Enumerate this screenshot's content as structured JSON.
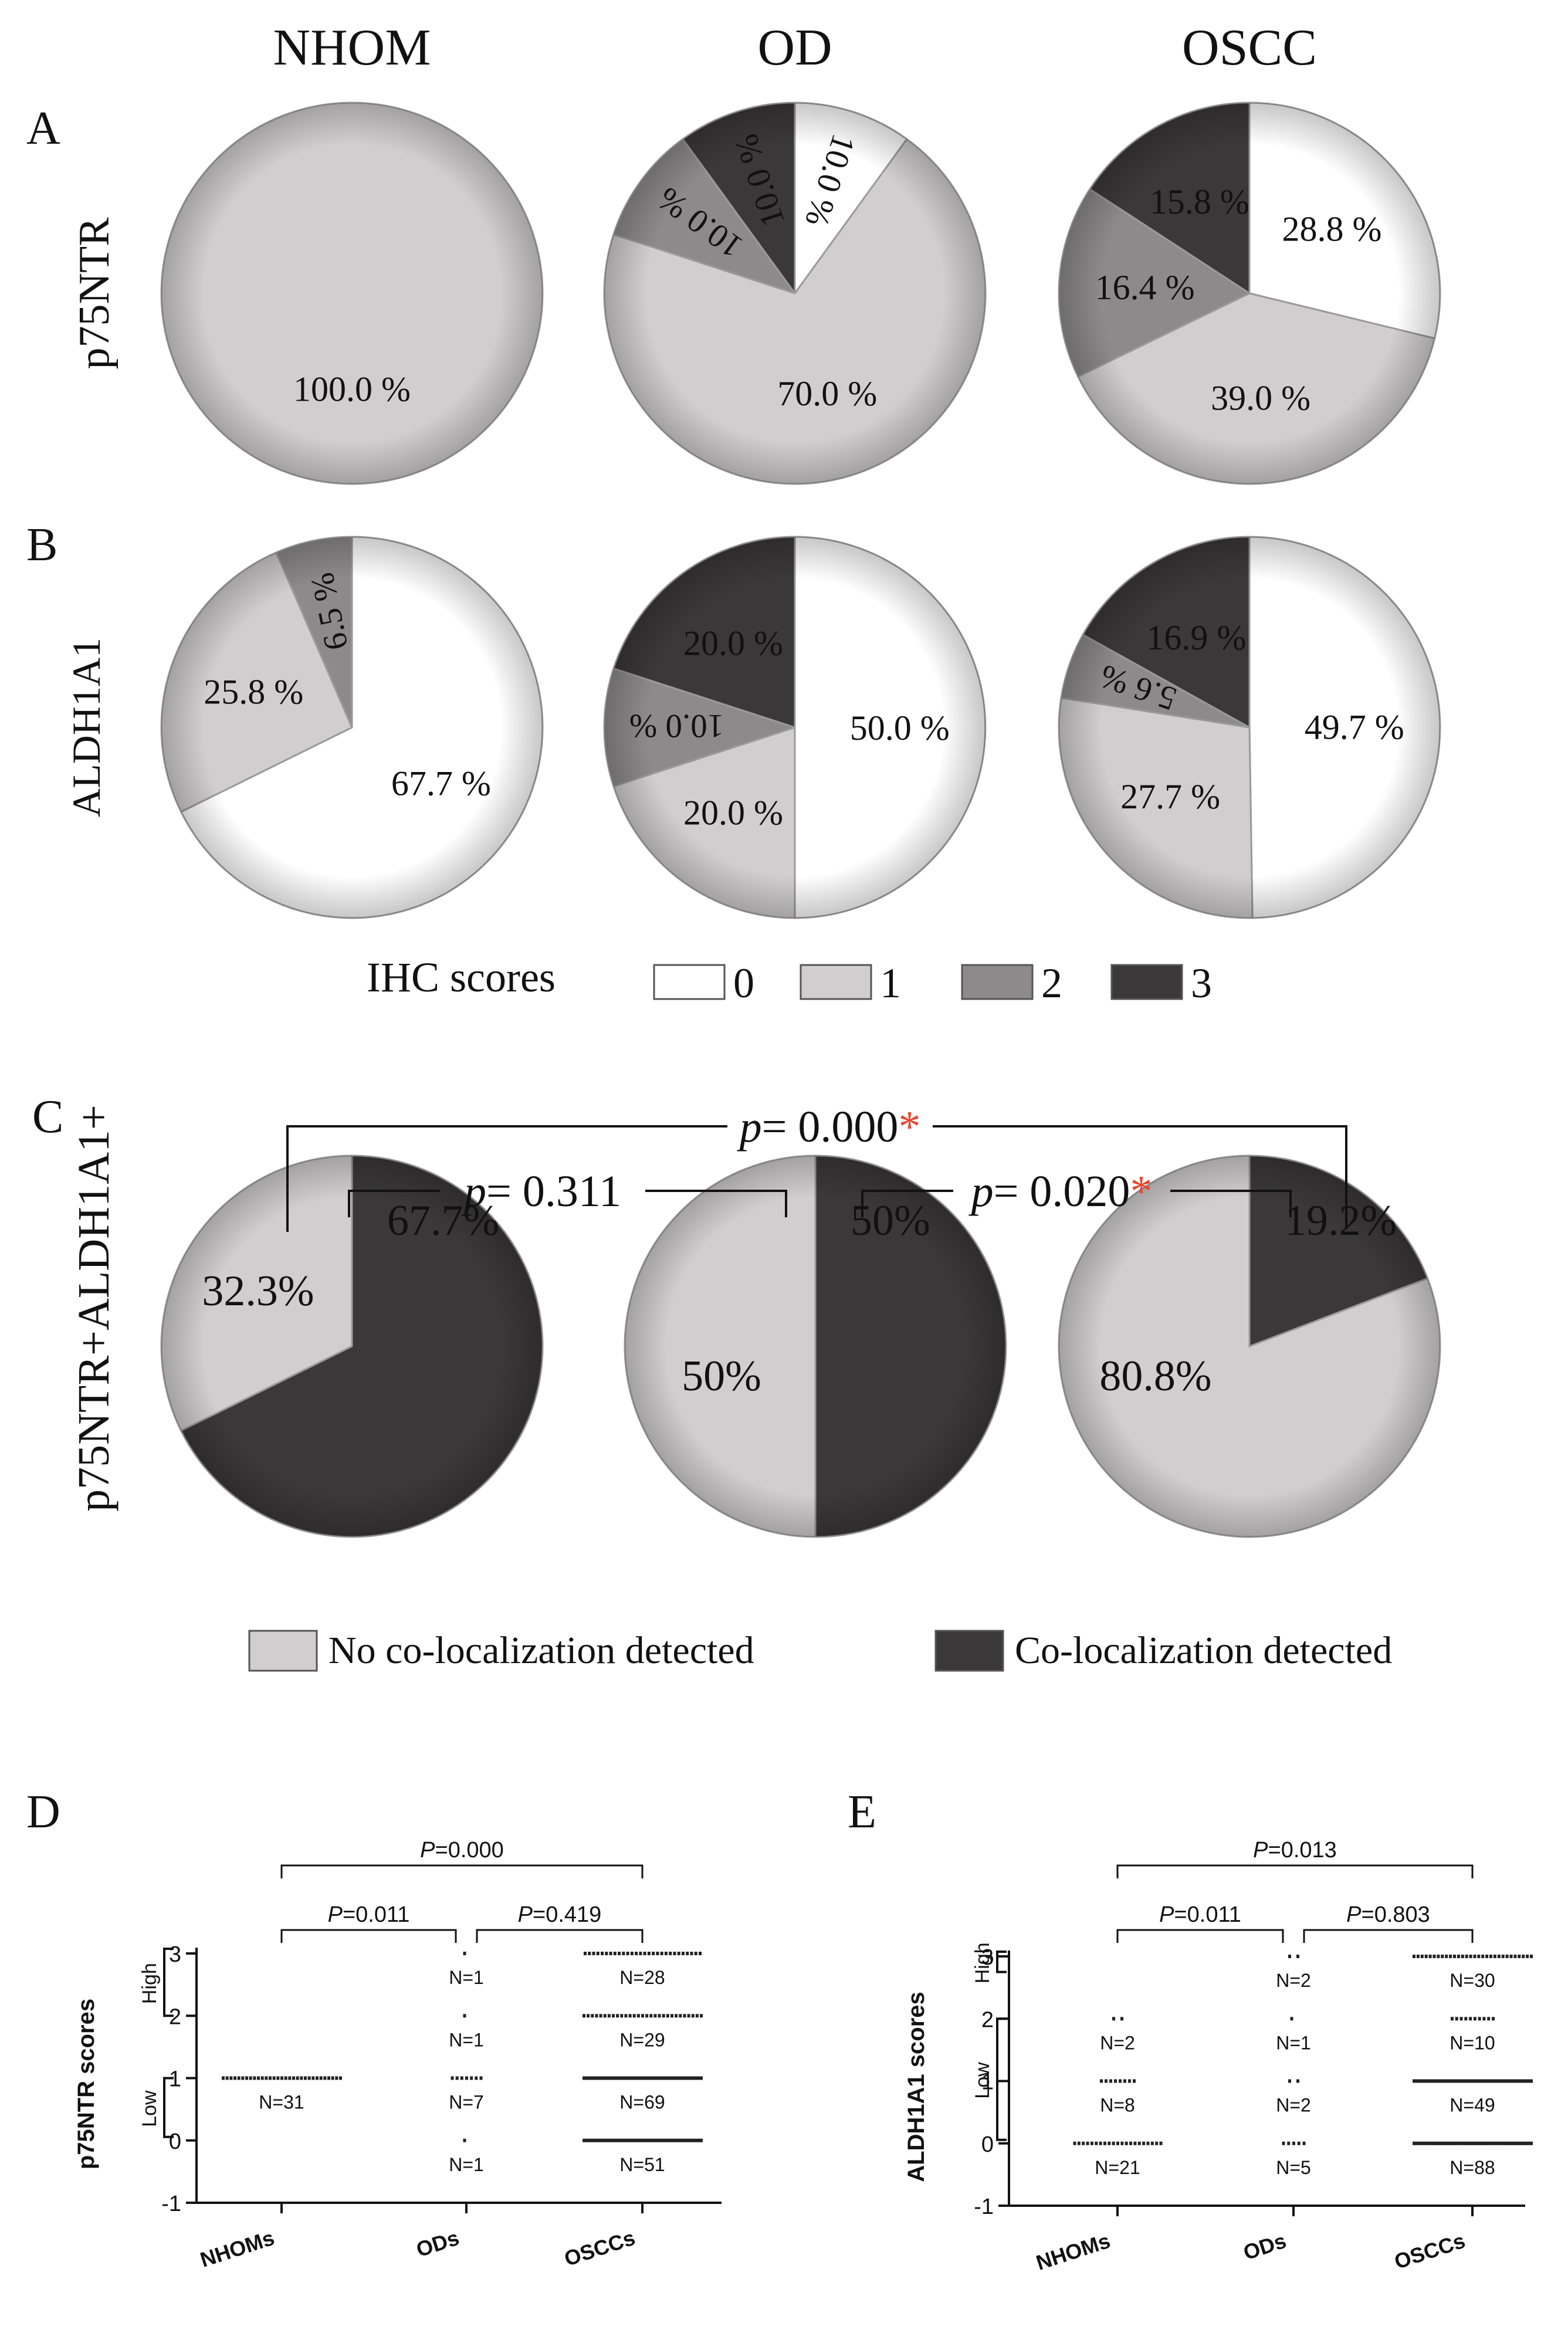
{
  "colors": {
    "score0": "#ffffff",
    "score1": "#d2ced0",
    "score2": "#8e8a8c",
    "score3": "#3a3839",
    "no_coloc": "#d2ced0",
    "coloc": "#3a3839",
    "outline": "#9a9a9a",
    "asterisk": "#e8472f",
    "ink": "#111111"
  },
  "panel_letters": [
    "A",
    "B",
    "C",
    "D",
    "E"
  ],
  "chart_data": [
    {
      "type": "pie",
      "panel": "A",
      "row_label": "p75NTR",
      "columns": [
        "NHOM",
        "OD",
        "OSCC"
      ],
      "legend_title": "IHC scores",
      "categories": [
        "0",
        "1",
        "2",
        "3"
      ],
      "pies": [
        {
          "group": "NHOM",
          "values": [
            0,
            100.0,
            0,
            0
          ],
          "labels": [
            "",
            "100.0 %",
            "",
            ""
          ]
        },
        {
          "group": "OD",
          "values": [
            10.0,
            70.0,
            10.0,
            10.0
          ],
          "labels": [
            "10.0 %",
            "70.0 %",
            "10.0 %",
            "10.0 %"
          ]
        },
        {
          "group": "OSCC",
          "values": [
            28.8,
            39.0,
            16.4,
            15.8
          ],
          "labels": [
            "28.8 %",
            "39.0 %",
            "16.4 %",
            "15.8 %"
          ]
        }
      ]
    },
    {
      "type": "pie",
      "panel": "B",
      "row_label": "ALDH1A1",
      "categories": [
        "0",
        "1",
        "2",
        "3"
      ],
      "pies": [
        {
          "group": "NHOM",
          "values": [
            67.7,
            25.8,
            6.5,
            0
          ],
          "labels": [
            "67.7 %",
            "25.8 %",
            "6.5 %",
            ""
          ]
        },
        {
          "group": "OD",
          "values": [
            50.0,
            20.0,
            10.0,
            20.0
          ],
          "labels": [
            "50.0 %",
            "20.0 %",
            "10.0 %",
            "20.0 %"
          ]
        },
        {
          "group": "OSCC",
          "values": [
            49.7,
            27.7,
            5.6,
            16.9
          ],
          "labels": [
            "49.7 %",
            "27.7 %",
            "5.6 %",
            "16.9 %"
          ]
        }
      ]
    },
    {
      "type": "pie",
      "panel": "C",
      "row_label": "p75NTR+ALDH1A1+",
      "categories": [
        "Co-localization detected",
        "No co-localization detected"
      ],
      "legend": [
        "No co-localization detected",
        "Co-localization detected"
      ],
      "pies": [
        {
          "group": "NHOM",
          "values": [
            67.7,
            32.3
          ],
          "labels": [
            "67.7%",
            "32.3%"
          ]
        },
        {
          "group": "OD",
          "values": [
            50,
            50
          ],
          "labels": [
            "50%",
            "50%"
          ]
        },
        {
          "group": "OSCC",
          "values": [
            19.2,
            80.8
          ],
          "labels": [
            "19.2%",
            "80.8%"
          ]
        }
      ],
      "comparisons": [
        {
          "groups": [
            "NHOM",
            "OSCC"
          ],
          "p_prefix": "p",
          "p_value": "= 0.000",
          "significant": true
        },
        {
          "groups": [
            "NHOM",
            "OD"
          ],
          "p_prefix": "p",
          "p_value": "= 0.311",
          "significant": false
        },
        {
          "groups": [
            "OD",
            "OSCC"
          ],
          "p_prefix": "p",
          "p_value": "= 0.020",
          "significant": true
        }
      ],
      "asterisk": "*"
    },
    {
      "type": "scatter",
      "panel": "D",
      "ylabel": "p75NTR scores",
      "categories": [
        "NHOMs",
        "ODs",
        "OSCCs"
      ],
      "yticks": [
        "3",
        "2",
        "1",
        "0",
        "-1"
      ],
      "ylim": [
        -1,
        3
      ],
      "bracket_labels": [
        "High",
        "Low"
      ],
      "points": [
        {
          "group": "NHOMs",
          "score": 1,
          "n": 31,
          "label": "N=31"
        },
        {
          "group": "ODs",
          "score": 3,
          "n": 1,
          "label": "N=1"
        },
        {
          "group": "ODs",
          "score": 2,
          "n": 1,
          "label": "N=1"
        },
        {
          "group": "ODs",
          "score": 1,
          "n": 7,
          "label": "N=7"
        },
        {
          "group": "ODs",
          "score": 0,
          "n": 1,
          "label": "N=1"
        },
        {
          "group": "OSCCs",
          "score": 3,
          "n": 28,
          "label": "N=28"
        },
        {
          "group": "OSCCs",
          "score": 2,
          "n": 29,
          "label": "N=29"
        },
        {
          "group": "OSCCs",
          "score": 1,
          "n": 69,
          "label": "N=69"
        },
        {
          "group": "OSCCs",
          "score": 0,
          "n": 51,
          "label": "N=51"
        }
      ],
      "comparisons": [
        {
          "groups": [
            "NHOMs",
            "OSCCs"
          ],
          "p_prefix": "P",
          "p_value": "=0.000"
        },
        {
          "groups": [
            "NHOMs",
            "ODs"
          ],
          "p_prefix": "P",
          "p_value": "=0.011"
        },
        {
          "groups": [
            "ODs",
            "OSCCs"
          ],
          "p_prefix": "P",
          "p_value": "=0.419"
        }
      ]
    },
    {
      "type": "scatter",
      "panel": "E",
      "ylabel": "ALDH1A1 scores",
      "categories": [
        "NHOMs",
        "ODs",
        "OSCCs"
      ],
      "yticks": [
        "3",
        "2",
        "1",
        "0",
        "-1"
      ],
      "ylim": [
        -1,
        3
      ],
      "bracket_labels": [
        "High",
        "Low"
      ],
      "points": [
        {
          "group": "NHOMs",
          "score": 2,
          "n": 2,
          "label": "N=2"
        },
        {
          "group": "NHOMs",
          "score": 1,
          "n": 8,
          "label": "N=8"
        },
        {
          "group": "NHOMs",
          "score": 0,
          "n": 21,
          "label": "N=21"
        },
        {
          "group": "ODs",
          "score": 3,
          "n": 2,
          "label": "N=2"
        },
        {
          "group": "ODs",
          "score": 2,
          "n": 1,
          "label": "N=1"
        },
        {
          "group": "ODs",
          "score": 1,
          "n": 2,
          "label": "N=2"
        },
        {
          "group": "ODs",
          "score": 0,
          "n": 5,
          "label": "N=5"
        },
        {
          "group": "OSCCs",
          "score": 3,
          "n": 30,
          "label": "N=30"
        },
        {
          "group": "OSCCs",
          "score": 2,
          "n": 10,
          "label": "N=10"
        },
        {
          "group": "OSCCs",
          "score": 1,
          "n": 49,
          "label": "N=49"
        },
        {
          "group": "OSCCs",
          "score": 0,
          "n": 88,
          "label": "N=88"
        }
      ],
      "comparisons": [
        {
          "groups": [
            "NHOMs",
            "OSCCs"
          ],
          "p_prefix": "P",
          "p_value": "=0.013"
        },
        {
          "groups": [
            "NHOMs",
            "ODs"
          ],
          "p_prefix": "P",
          "p_value": "=0.011"
        },
        {
          "groups": [
            "ODs",
            "OSCCs"
          ],
          "p_prefix": "P",
          "p_value": "=0.803"
        }
      ]
    }
  ]
}
